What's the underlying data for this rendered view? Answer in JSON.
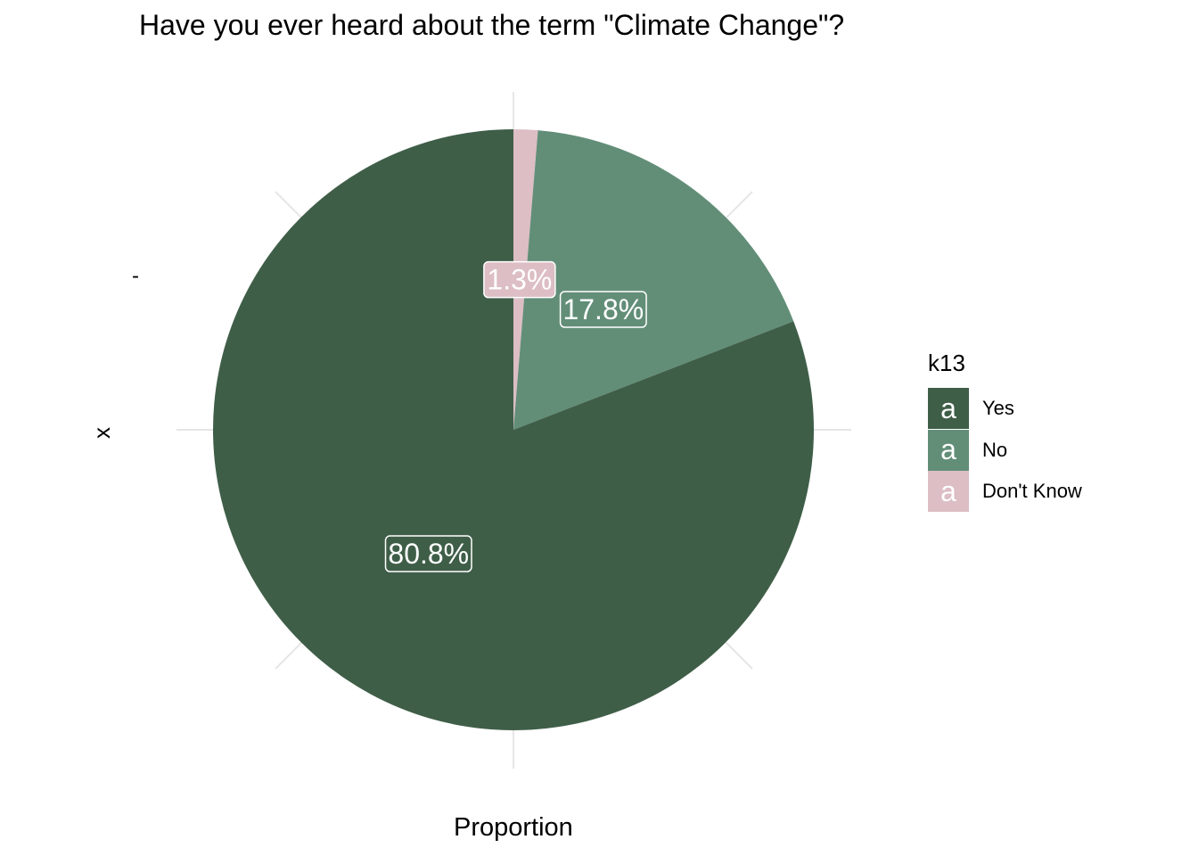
{
  "chart_data": {
    "type": "pie",
    "title": "Have you ever heard about the term \"Climate Change\"?",
    "xlabel": "Proportion",
    "ylabel": "x",
    "y_tick_labels": [
      "-"
    ],
    "legend_title": "k13",
    "legend_position": "right",
    "legend_key_glyph": "a",
    "grid": true,
    "categories": [
      "Yes",
      "No",
      "Don't Know"
    ],
    "values": [
      80.8,
      17.8,
      1.3
    ],
    "data_labels": [
      "80.8%",
      "17.8%",
      "1.3%"
    ],
    "colors": [
      "#3f5e48",
      "#628e78",
      "#dcbec4"
    ]
  }
}
